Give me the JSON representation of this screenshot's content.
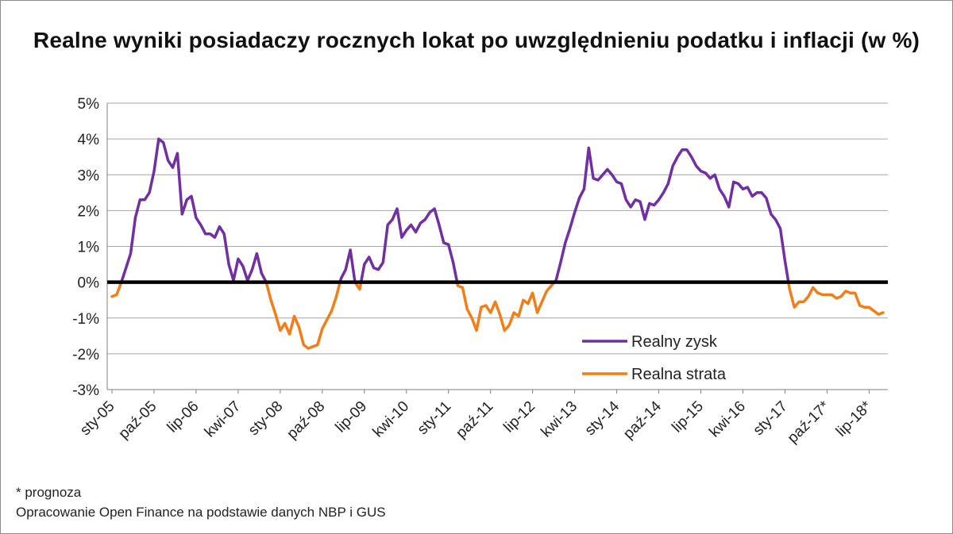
{
  "chart_data": {
    "type": "line",
    "title": "Realne wyniki posiadaczy rocznych lokat po uwzględnieniu podatku i inflacji (w %)",
    "xlabel": "",
    "ylabel": "",
    "ylim": [
      -3,
      5
    ],
    "y_ticks": [
      "5%",
      "4%",
      "3%",
      "2%",
      "1%",
      "0%",
      "-1%",
      "-2%",
      "-3%"
    ],
    "x_tick_labels": [
      "sty-05",
      "paź-05",
      "lip-06",
      "kwi-07",
      "sty-08",
      "paź-08",
      "lip-09",
      "kwi-10",
      "sty-11",
      "paź-11",
      "lip-12",
      "kwi-13",
      "sty-14",
      "paź-14",
      "lip-15",
      "kwi-16",
      "sty-17",
      "paź-17*",
      "lip-18*"
    ],
    "x_start": "2005-01",
    "x_end": "2018-12",
    "grid": true,
    "zero_line": true,
    "legend_position": "bottom-right",
    "series": [
      {
        "name": "Realny zysk",
        "color": "#7030a0",
        "rule": "value >= 0"
      },
      {
        "name": "Realna strata",
        "color": "#f07f1b",
        "rule": "value < 0"
      }
    ],
    "values": [
      -0.4,
      -0.35,
      0.0,
      0.4,
      0.8,
      1.8,
      2.3,
      2.3,
      2.5,
      3.1,
      4.0,
      3.9,
      3.4,
      3.2,
      3.6,
      1.9,
      2.3,
      2.4,
      1.8,
      1.6,
      1.35,
      1.35,
      1.25,
      1.55,
      1.35,
      0.5,
      0.05,
      0.65,
      0.45,
      0.05,
      0.35,
      0.8,
      0.25,
      0.0,
      -0.5,
      -0.9,
      -1.35,
      -1.15,
      -1.45,
      -0.95,
      -1.25,
      -1.75,
      -1.85,
      -1.8,
      -1.75,
      -1.3,
      -1.05,
      -0.8,
      -0.4,
      0.1,
      0.35,
      0.9,
      0.0,
      -0.2,
      0.5,
      0.7,
      0.4,
      0.35,
      0.55,
      1.6,
      1.75,
      2.05,
      1.25,
      1.45,
      1.6,
      1.4,
      1.65,
      1.75,
      1.95,
      2.05,
      1.6,
      1.1,
      1.05,
      0.55,
      -0.1,
      -0.15,
      -0.75,
      -1.0,
      -1.35,
      -0.7,
      -0.65,
      -0.85,
      -0.55,
      -0.9,
      -1.35,
      -1.2,
      -0.85,
      -0.95,
      -0.5,
      -0.6,
      -0.3,
      -0.85,
      -0.55,
      -0.25,
      -0.1,
      0.05,
      0.55,
      1.1,
      1.5,
      1.95,
      2.35,
      2.6,
      3.75,
      2.9,
      2.85,
      3.0,
      3.15,
      3.0,
      2.8,
      2.75,
      2.3,
      2.1,
      2.3,
      2.25,
      1.75,
      2.2,
      2.15,
      2.3,
      2.5,
      2.75,
      3.25,
      3.5,
      3.7,
      3.7,
      3.5,
      3.25,
      3.1,
      3.05,
      2.9,
      3.0,
      2.6,
      2.4,
      2.1,
      2.8,
      2.75,
      2.6,
      2.65,
      2.4,
      2.5,
      2.5,
      2.35,
      1.9,
      1.75,
      1.5,
      0.6,
      -0.2,
      -0.7,
      -0.55,
      -0.55,
      -0.4,
      -0.15,
      -0.3,
      -0.35,
      -0.35,
      -0.35,
      -0.45,
      -0.4,
      -0.25,
      -0.3,
      -0.3,
      -0.65,
      -0.7,
      -0.7,
      -0.8,
      -0.9,
      -0.85
    ]
  },
  "footnote": "* prognoza",
  "source": "Opracowanie Open Finance na podstawie danych NBP i GUS"
}
